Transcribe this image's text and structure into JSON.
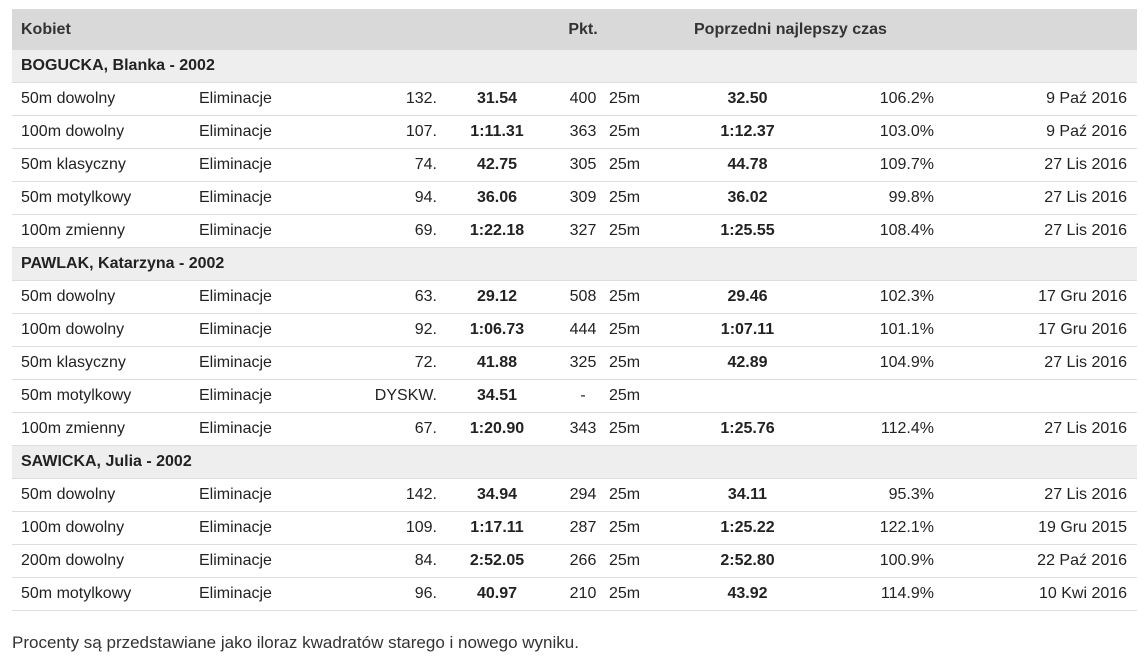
{
  "header": {
    "kobiet": "Kobiet",
    "pkt": "Pkt.",
    "prev_best": "Poprzedni najlepszy czas"
  },
  "groups": [
    {
      "name": "BOGUCKA, Blanka - 2002",
      "rows": [
        {
          "event": "50m dowolny",
          "round": "Eliminacje",
          "place": "132.",
          "time": "31.54",
          "points": "400",
          "pool": "25m",
          "prev": "32.50",
          "pct": "106.2%",
          "date": "9 Paź 2016"
        },
        {
          "event": "100m dowolny",
          "round": "Eliminacje",
          "place": "107.",
          "time": "1:11.31",
          "points": "363",
          "pool": "25m",
          "prev": "1:12.37",
          "pct": "103.0%",
          "date": "9 Paź 2016"
        },
        {
          "event": "50m klasyczny",
          "round": "Eliminacje",
          "place": "74.",
          "time": "42.75",
          "points": "305",
          "pool": "25m",
          "prev": "44.78",
          "pct": "109.7%",
          "date": "27 Lis 2016"
        },
        {
          "event": "50m motylkowy",
          "round": "Eliminacje",
          "place": "94.",
          "time": "36.06",
          "points": "309",
          "pool": "25m",
          "prev": "36.02",
          "pct": "99.8%",
          "date": "27 Lis 2016"
        },
        {
          "event": "100m zmienny",
          "round": "Eliminacje",
          "place": "69.",
          "time": "1:22.18",
          "points": "327",
          "pool": "25m",
          "prev": "1:25.55",
          "pct": "108.4%",
          "date": "27 Lis 2016"
        }
      ]
    },
    {
      "name": "PAWLAK, Katarzyna - 2002",
      "rows": [
        {
          "event": "50m dowolny",
          "round": "Eliminacje",
          "place": "63.",
          "time": "29.12",
          "points": "508",
          "pool": "25m",
          "prev": "29.46",
          "pct": "102.3%",
          "date": "17 Gru 2016"
        },
        {
          "event": "100m dowolny",
          "round": "Eliminacje",
          "place": "92.",
          "time": "1:06.73",
          "points": "444",
          "pool": "25m",
          "prev": "1:07.11",
          "pct": "101.1%",
          "date": "17 Gru 2016"
        },
        {
          "event": "50m klasyczny",
          "round": "Eliminacje",
          "place": "72.",
          "time": "41.88",
          "points": "325",
          "pool": "25m",
          "prev": "42.89",
          "pct": "104.9%",
          "date": "27 Lis 2016"
        },
        {
          "event": "50m motylkowy",
          "round": "Eliminacje",
          "place": "DYSKW.",
          "time": "34.51",
          "points": "-",
          "pool": "25m",
          "prev": "",
          "pct": "",
          "date": ""
        },
        {
          "event": "100m zmienny",
          "round": "Eliminacje",
          "place": "67.",
          "time": "1:20.90",
          "points": "343",
          "pool": "25m",
          "prev": "1:25.76",
          "pct": "112.4%",
          "date": "27 Lis 2016"
        }
      ]
    },
    {
      "name": "SAWICKA, Julia - 2002",
      "rows": [
        {
          "event": "50m dowolny",
          "round": "Eliminacje",
          "place": "142.",
          "time": "34.94",
          "points": "294",
          "pool": "25m",
          "prev": "34.11",
          "pct": "95.3%",
          "date": "27 Lis 2016"
        },
        {
          "event": "100m dowolny",
          "round": "Eliminacje",
          "place": "109.",
          "time": "1:17.11",
          "points": "287",
          "pool": "25m",
          "prev": "1:25.22",
          "pct": "122.1%",
          "date": "19 Gru 2015"
        },
        {
          "event": "200m dowolny",
          "round": "Eliminacje",
          "place": "84.",
          "time": "2:52.05",
          "points": "266",
          "pool": "25m",
          "prev": "2:52.80",
          "pct": "100.9%",
          "date": "22 Paź 2016"
        },
        {
          "event": "50m motylkowy",
          "round": "Eliminacje",
          "place": "96.",
          "time": "40.97",
          "points": "210",
          "pool": "25m",
          "prev": "43.92",
          "pct": "114.9%",
          "date": "10 Kwi 2016"
        }
      ]
    }
  ],
  "footnote": "Procenty są przedstawiane jako iloraz kwadratów starego i nowego wyniku."
}
